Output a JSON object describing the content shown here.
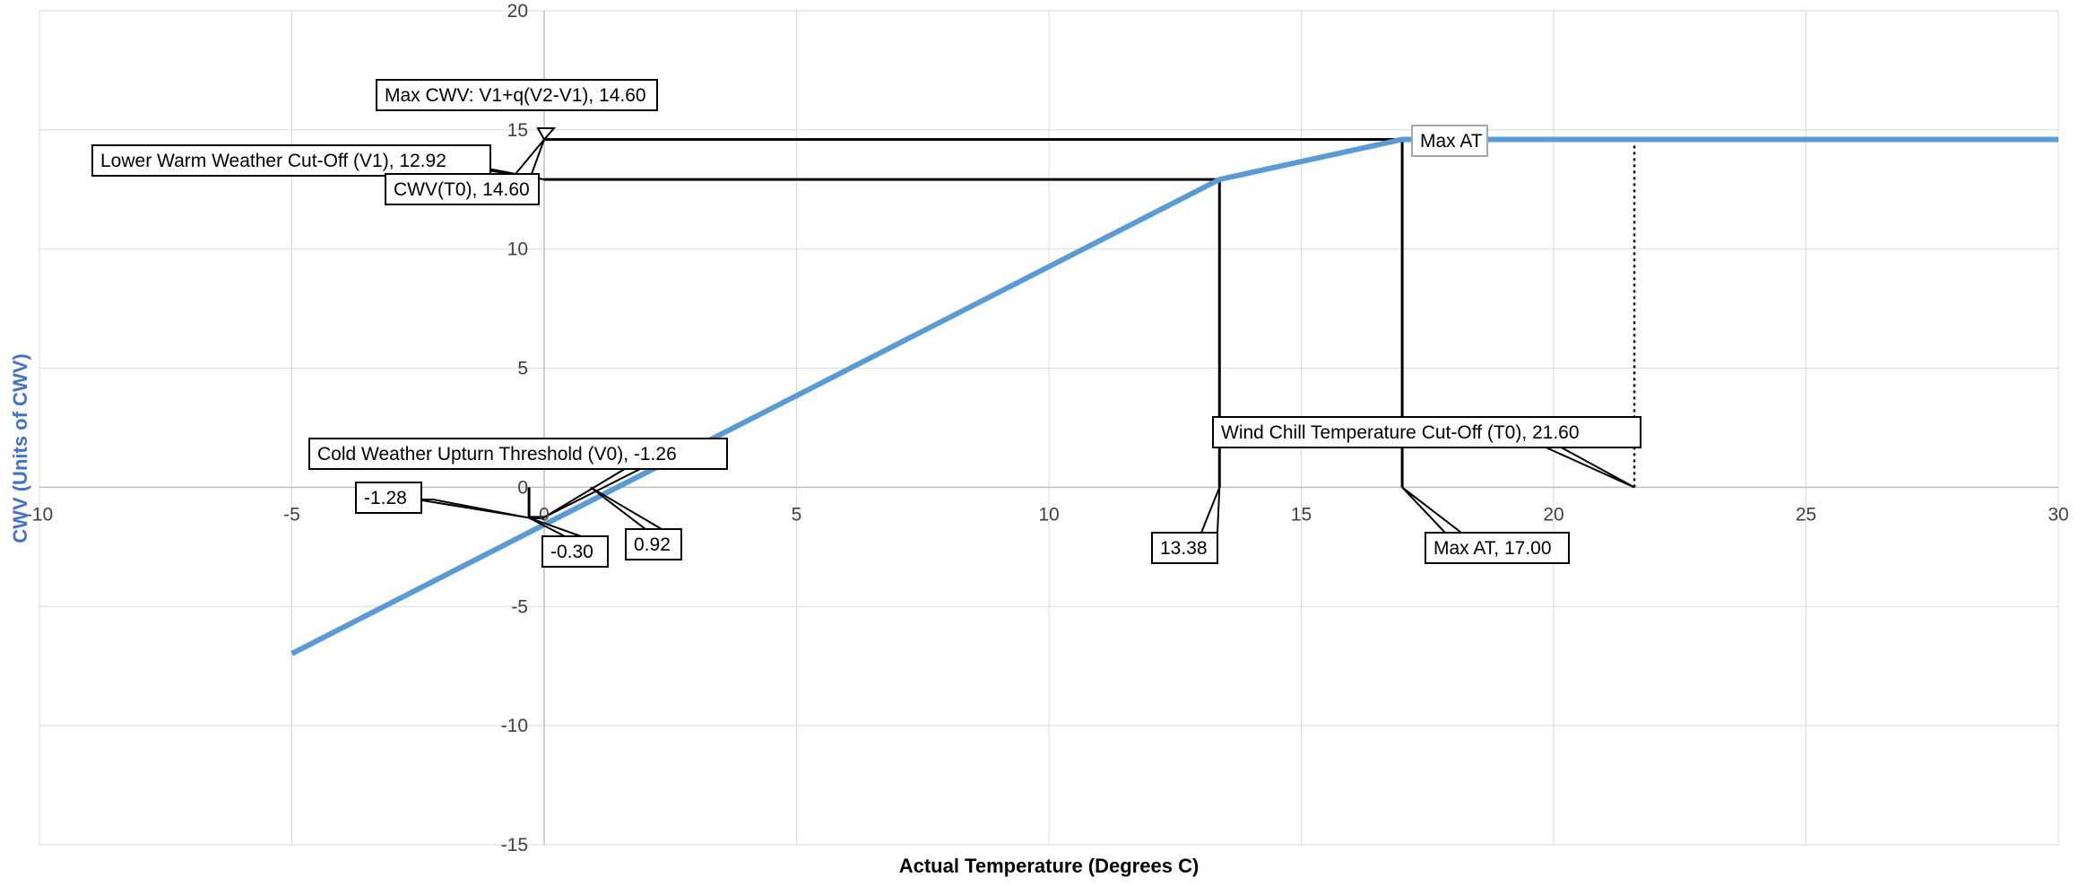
{
  "chart_data": {
    "type": "line",
    "xlabel": "Actual Temperature (Degrees C)",
    "ylabel": "CWV (Units of CWV)",
    "xlim": [
      -10,
      30
    ],
    "ylim": [
      -15,
      20
    ],
    "x_ticks": [
      -10,
      -5,
      0,
      5,
      10,
      15,
      20,
      25,
      30
    ],
    "y_ticks": [
      -15,
      -10,
      -5,
      0,
      5,
      10,
      15,
      20
    ],
    "x_tick_labels": [
      "-10",
      "-5",
      "0",
      "5",
      "10",
      "15",
      "20",
      "25",
      "30"
    ],
    "y_tick_labels": [
      "-15",
      "-10",
      "-5",
      "0",
      "5",
      "10",
      "15",
      "20"
    ],
    "grid": true,
    "legend": "none",
    "colors": {
      "series": "#5b9bd5",
      "reference": "#000000",
      "grid": "#d9d9d9",
      "ylabel": "#4472c4"
    },
    "series": [
      {
        "x": [
          -5,
          13.38,
          17,
          30
        ],
        "y": [
          -6.98,
          12.92,
          14.6,
          14.6
        ]
      }
    ],
    "reference_lines": [
      {
        "x": [
          0,
          17
        ],
        "y": [
          14.6,
          14.6
        ],
        "style": "solid"
      },
      {
        "x": [
          17,
          21.6
        ],
        "y": [
          14.6,
          14.6
        ],
        "style": "dotted"
      },
      {
        "x": [
          0,
          13.38
        ],
        "y": [
          12.92,
          12.92
        ],
        "style": "solid"
      },
      {
        "x": [
          13.38,
          13.38
        ],
        "y": [
          0,
          12.92
        ],
        "style": "solid"
      },
      {
        "x": [
          17,
          17
        ],
        "y": [
          0,
          14.6
        ],
        "style": "solid"
      },
      {
        "x": [
          21.6,
          21.6
        ],
        "y": [
          0,
          14.6
        ],
        "style": "dotted"
      },
      {
        "x": [
          -0.3,
          -0.3
        ],
        "y": [
          -1.28,
          0
        ],
        "style": "solid"
      },
      {
        "x": [
          -0.3,
          0
        ],
        "y": [
          -1.28,
          -1.28
        ],
        "style": "solid"
      },
      {
        "x": [
          -0.3,
          0
        ],
        "y": [
          -1.26,
          -1.26
        ],
        "style": "solid"
      },
      {
        "x": [
          0,
          0
        ],
        "y": [
          -1.28,
          -1.26
        ],
        "style": "solid"
      }
    ],
    "annotations": [
      {
        "text": "Max CWV: V1+q(V2-V1), 14.60",
        "point": [
          0,
          14.6
        ]
      },
      {
        "text": "Lower Warm  Weather Cut-Off (V1), 12.92",
        "point": [
          0,
          12.92
        ]
      },
      {
        "text": "CWV(T0), 14.60",
        "point": [
          0,
          14.6
        ]
      },
      {
        "text": "Max AT",
        "point": [
          17,
          14.6
        ]
      },
      {
        "text": "Wind Chill Temperature Cut-Off (T0), 21.60",
        "point": [
          21.6,
          0
        ]
      },
      {
        "text": "Cold Weather Upturn Threshold (V0), -1.26",
        "point": [
          0,
          -1.26
        ]
      },
      {
        "text": "-1.28",
        "point": [
          -0.3,
          -1.28
        ]
      },
      {
        "text": "-0.30",
        "point": [
          -0.3,
          -1.28
        ]
      },
      {
        "text": "0.92",
        "point": [
          0.92,
          0
        ]
      },
      {
        "text": "13.38",
        "point": [
          13.38,
          0
        ]
      },
      {
        "text": "Max AT, 17.00",
        "point": [
          17,
          0
        ]
      }
    ]
  }
}
